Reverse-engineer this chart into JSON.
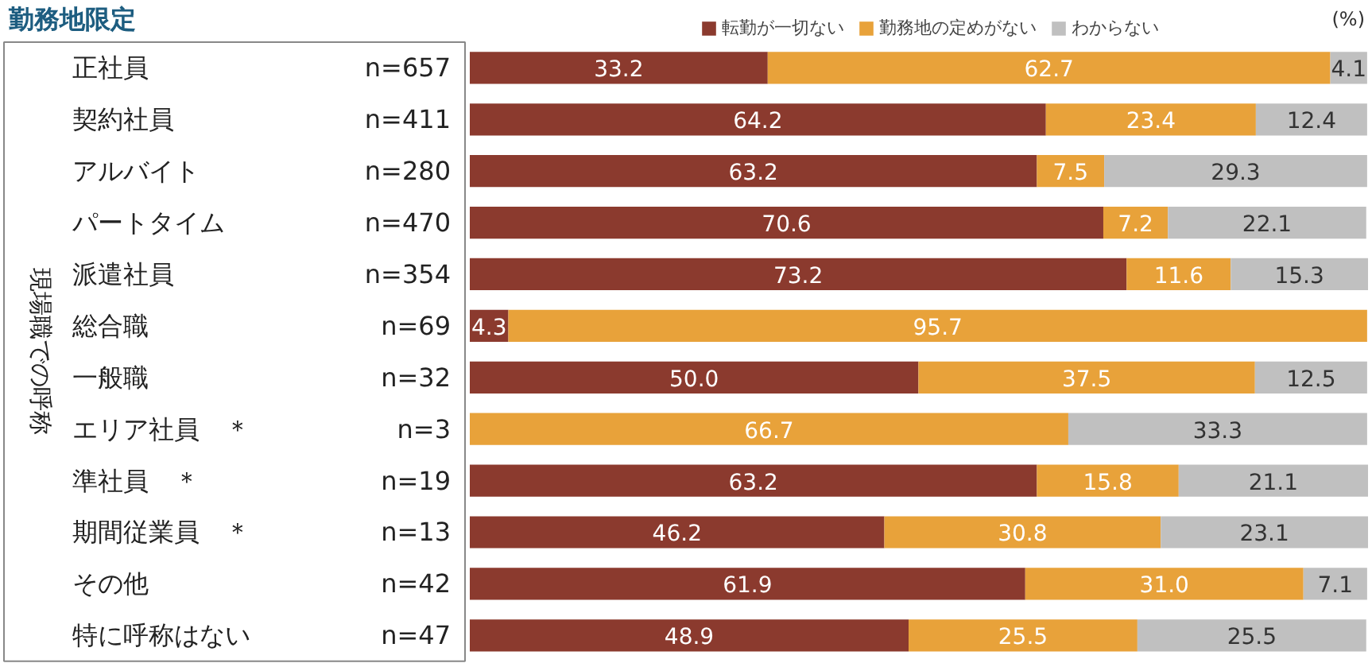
{
  "chart_data": {
    "type": "bar",
    "orientation": "horizontal",
    "stacked": true,
    "title": "勤務地限定",
    "ylabel": "現場職での呼称",
    "categories": [
      "正社員",
      "契約社員",
      "アルバイト",
      "パートタイム",
      "派遣社員",
      "総合職",
      "一般職",
      "エリア社員　＊",
      "準社員　＊",
      "期間従業員　＊",
      "その他",
      "特に呼称はない"
    ],
    "annotations": [
      "n=657",
      "n=411",
      "n=280",
      "n=470",
      "n=354",
      "n=69",
      "n=32",
      "n=3",
      "n=19",
      "n=13",
      "n=42",
      "n=47",
      "(%)"
    ],
    "series": [
      {
        "name": "転勤が一切ない",
        "color": "#8b3a2e",
        "values": [
          33.2,
          64.2,
          63.2,
          70.6,
          73.2,
          4.3,
          50.0,
          null,
          63.2,
          46.2,
          61.9,
          48.9
        ],
        "value_labels": [
          "33.2",
          "64.2",
          "63.2",
          "70.6",
          "73.2",
          "4.3",
          "50.0",
          null,
          "63.2",
          "46.2",
          "61.9",
          "48.9"
        ]
      },
      {
        "name": "勤務地の定めがない",
        "color": "#e8a23a",
        "values": [
          62.7,
          23.4,
          7.5,
          7.2,
          11.6,
          95.7,
          37.5,
          66.7,
          15.8,
          30.8,
          31.0,
          25.5
        ],
        "value_labels": [
          "62.7",
          "23.4",
          "7.5",
          "7.2",
          "11.6",
          "95.7",
          "37.5",
          "66.7",
          "15.8",
          "30.8",
          "31.0",
          "25.5"
        ]
      },
      {
        "name": "わからない",
        "color": "#c0c0c0",
        "values": [
          4.1,
          12.4,
          29.3,
          22.1,
          15.3,
          null,
          12.5,
          33.3,
          21.1,
          23.1,
          7.1,
          25.5
        ],
        "value_labels": [
          "4.1",
          "12.4",
          "29.3",
          "22.1",
          "15.3",
          null,
          "12.5",
          "33.3",
          "21.1",
          "23.1",
          "7.1",
          "25.5"
        ]
      }
    ],
    "legend": "top right",
    "grid": false
  }
}
